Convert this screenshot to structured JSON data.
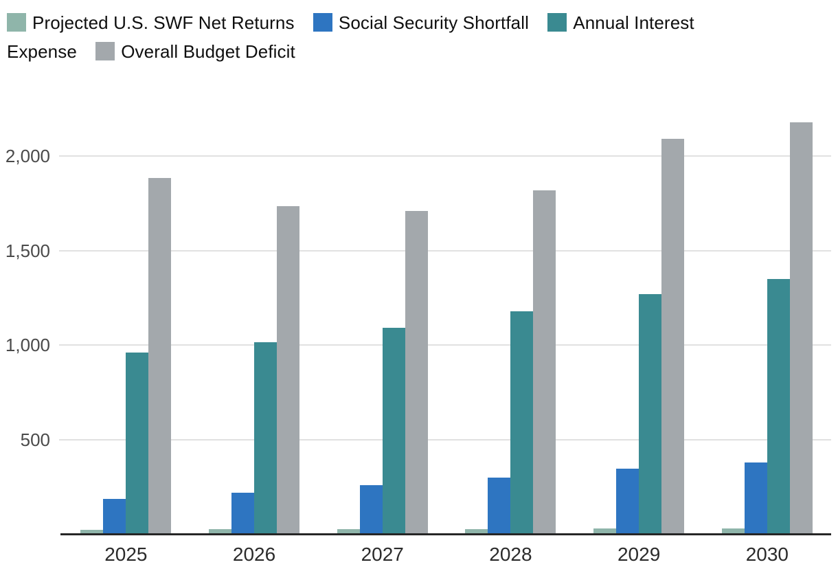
{
  "chart_data": {
    "type": "bar",
    "title": "",
    "xlabel": "",
    "ylabel": "",
    "categories": [
      "2025",
      "2026",
      "2027",
      "2028",
      "2029",
      "2030"
    ],
    "series": [
      {
        "name": "Projected U.S. SWF Net Returns",
        "color": "#8FB5AA",
        "values": [
          22,
          24,
          25,
          27,
          28,
          30
        ]
      },
      {
        "name": "Social Security Shortfall",
        "color": "#2E75C1",
        "values": [
          185,
          220,
          260,
          300,
          345,
          380
        ]
      },
      {
        "name": "Annual Interest Expense",
        "color": "#3A8A91",
        "values": [
          960,
          1015,
          1090,
          1180,
          1270,
          1350
        ]
      },
      {
        "name": "Overall Budget Deficit",
        "color": "#A3A8AC",
        "values": [
          1885,
          1735,
          1710,
          1820,
          2090,
          2180
        ]
      }
    ],
    "ylim": [
      0,
      2200
    ],
    "yticks": [
      {
        "value": 500,
        "label": "500"
      },
      {
        "value": 1000,
        "label": "1,000"
      },
      {
        "value": 1500,
        "label": "1,500"
      },
      {
        "value": 2000,
        "label": "2,000"
      }
    ],
    "grid": "horizontal-only",
    "legend_position": "top-left"
  },
  "legend": {
    "items": [
      {
        "label": "Projected U.S. SWF Net Returns",
        "color": "#8FB5AA"
      },
      {
        "label": "Social Security Shortfall",
        "color": "#2E75C1"
      },
      {
        "label_line1": "Annual Interest",
        "label_line2": "Expense",
        "color": "#3A8A91"
      },
      {
        "label": "Overall Budget Deficit",
        "color": "#A3A8AC"
      }
    ]
  }
}
